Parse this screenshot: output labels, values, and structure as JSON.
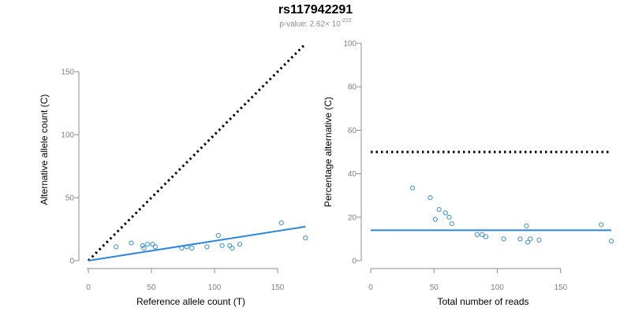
{
  "header": {
    "title": "rs117942291",
    "pvalue_prefix": "p-value: 2.62× 10",
    "pvalue_exponent": "-222"
  },
  "colors": {
    "points": "#3a8fd6",
    "fit_line": "#2b86d9",
    "reference_line": "#000000",
    "axis": "#8c8c8c",
    "tick_text": "#7f7f7f"
  },
  "chart_data": [
    {
      "type": "scatter",
      "name": "left-plot",
      "title": "",
      "xlabel": "Reference allele count (T)",
      "ylabel": "Alternative allele count (C)",
      "xlim": [
        0,
        175
      ],
      "ylim": [
        0,
        150
      ],
      "xticks": [
        0,
        50,
        100,
        150
      ],
      "yticks": [
        0,
        50,
        100,
        150
      ],
      "x": [
        22,
        34,
        43,
        44,
        47,
        51,
        53,
        74,
        78,
        82,
        94,
        103,
        106,
        112,
        114,
        120,
        153,
        172
      ],
      "y": [
        11,
        14,
        12,
        10,
        13,
        13,
        11,
        10,
        11,
        10,
        11,
        20,
        12,
        12,
        10,
        13,
        30,
        18
      ],
      "fit_line": {
        "x": [
          0,
          172
        ],
        "y": [
          0,
          27
        ]
      },
      "reference_line": {
        "x": [
          0,
          172
        ],
        "y": [
          0,
          172
        ]
      }
    },
    {
      "type": "scatter",
      "name": "right-plot",
      "title": "",
      "xlabel": "Total number of reads",
      "ylabel": "Percentage alternative (C)",
      "xlim": [
        0,
        190
      ],
      "ylim": [
        0,
        100
      ],
      "xticks": [
        0,
        50,
        100,
        150
      ],
      "yticks": [
        0,
        20,
        40,
        60,
        80,
        100
      ],
      "x": [
        33,
        47,
        51,
        54,
        59,
        62,
        64,
        84,
        88,
        91,
        105,
        118,
        123,
        124,
        126,
        133,
        182,
        190
      ],
      "y": [
        33.5,
        29,
        19,
        23.5,
        22,
        20,
        17,
        12,
        12,
        11,
        10,
        10,
        16,
        8.5,
        10,
        9.5,
        16.5,
        9
      ],
      "fit_line": {
        "x": [
          0,
          190
        ],
        "y": [
          14,
          14
        ]
      },
      "reference_line": {
        "x": [
          0,
          190
        ],
        "y": [
          50,
          50
        ]
      }
    }
  ]
}
